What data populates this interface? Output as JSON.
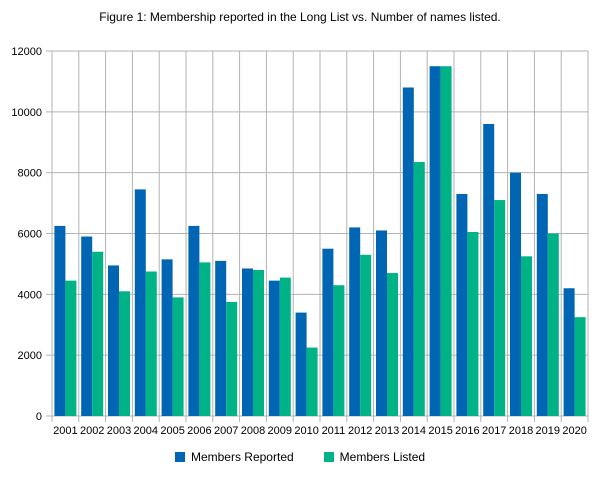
{
  "chart_data": {
    "type": "bar",
    "title": "Figure 1: Membership reported in the Long List vs. Number of names listed.",
    "xlabel": "",
    "ylabel": "",
    "ylim": [
      0,
      12000
    ],
    "yticks": [
      0,
      2000,
      4000,
      6000,
      8000,
      10000,
      12000
    ],
    "grid": true,
    "legend_position": "bottom",
    "categories": [
      "2001",
      "2002",
      "2003",
      "2004",
      "2005",
      "2006",
      "2007",
      "2008",
      "2009",
      "2010",
      "2011",
      "2012",
      "2013",
      "2014",
      "2015",
      "2016",
      "2017",
      "2018",
      "2019",
      "2020"
    ],
    "series": [
      {
        "name": "Members Reported",
        "color": "#0066b3",
        "values": [
          6250,
          5900,
          4950,
          7450,
          5150,
          6250,
          5100,
          4850,
          4450,
          3400,
          5500,
          6200,
          6100,
          10800,
          11500,
          7300,
          9600,
          8000,
          7300,
          4200
        ]
      },
      {
        "name": "Members Listed",
        "color": "#00b386",
        "values": [
          4450,
          5400,
          4100,
          4750,
          3900,
          5050,
          3750,
          4800,
          4550,
          2250,
          4300,
          5300,
          4700,
          8350,
          11500,
          6050,
          7100,
          5250,
          6000,
          3250
        ]
      }
    ]
  }
}
